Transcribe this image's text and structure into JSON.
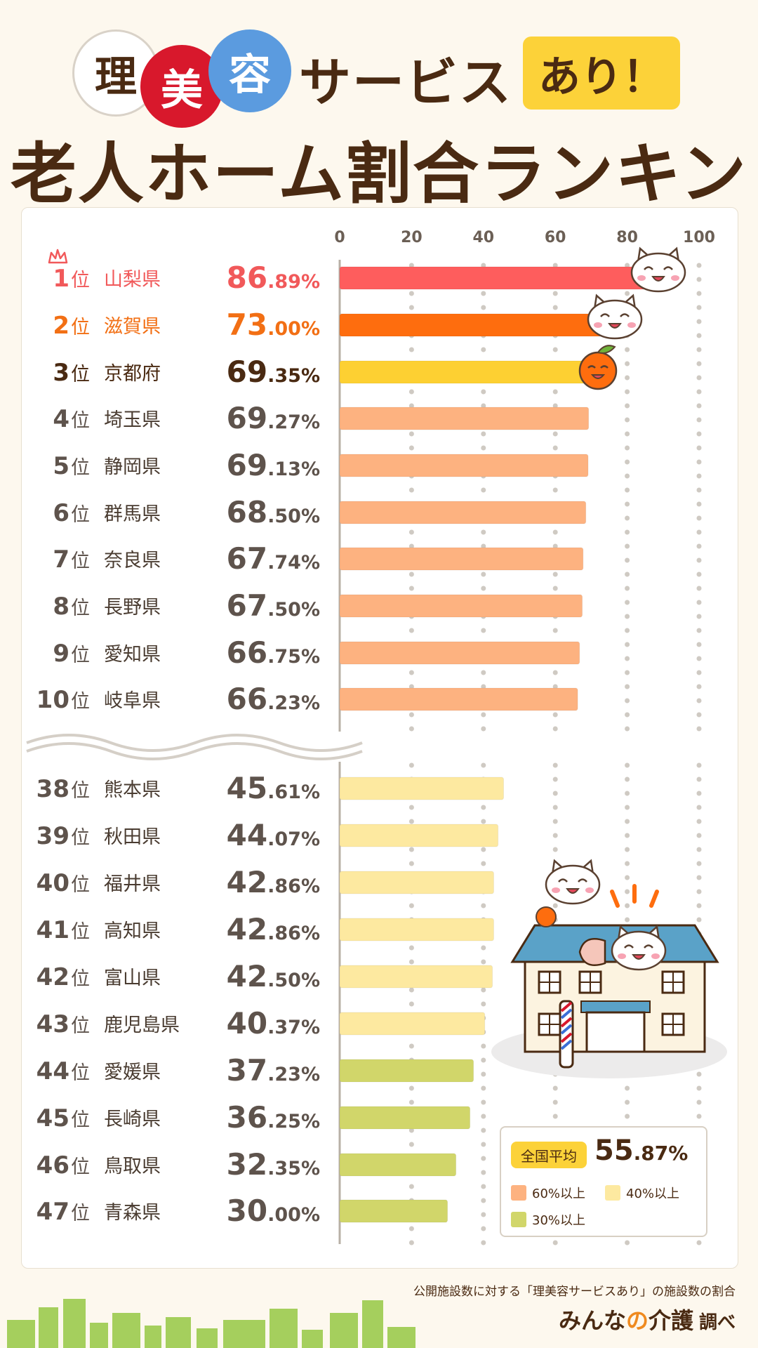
{
  "title": {
    "circle1": "理",
    "circle2": "美",
    "circle3": "容",
    "service": "サービス",
    "ari": "あり！",
    "line2": "老人ホーム割合ランキング"
  },
  "legend": {
    "avg_label": "全国平均",
    "avg_int": "55",
    "avg_dec": ".87%",
    "items": [
      "60%以上",
      "40%以上",
      "30%以上"
    ],
    "colors": [
      "#fdb280",
      "#fde9a0",
      "#d1d66a"
    ]
  },
  "footer": {
    "note": "公開施設数に対する「理美容サービスあり」の施設数の割合",
    "brand_main": "みんな",
    "brand_no": "の",
    "brand_care": "介護",
    "brand_sub": "調べ"
  },
  "chart_data": {
    "type": "bar",
    "orientation": "horizontal",
    "xlim": [
      0,
      100
    ],
    "x_ticks": [
      0,
      20,
      40,
      60,
      80,
      100
    ],
    "rank_suffix": "位",
    "unit": "%",
    "rows": [
      {
        "rank": "1",
        "pref": "山梨県",
        "int": "86",
        "dec": ".89%",
        "value": 86.89,
        "color": "#fe5d5d",
        "text_color": "#f1595a"
      },
      {
        "rank": "2",
        "pref": "滋賀県",
        "int": "73",
        "dec": ".00%",
        "value": 73.0,
        "color": "#fe6d0e",
        "text_color": "#f26f14"
      },
      {
        "rank": "3",
        "pref": "京都府",
        "int": "69",
        "dec": ".35%",
        "value": 69.35,
        "color": "#fdd032",
        "text_color": "#4a2a12"
      },
      {
        "rank": "4",
        "pref": "埼玉県",
        "int": "69",
        "dec": ".27%",
        "value": 69.27,
        "color": "#fdb280",
        "text_color": "#5e534c"
      },
      {
        "rank": "5",
        "pref": "静岡県",
        "int": "69",
        "dec": ".13%",
        "value": 69.13,
        "color": "#fdb280",
        "text_color": "#5e534c"
      },
      {
        "rank": "6",
        "pref": "群馬県",
        "int": "68",
        "dec": ".50%",
        "value": 68.5,
        "color": "#fdb280",
        "text_color": "#5e534c"
      },
      {
        "rank": "7",
        "pref": "奈良県",
        "int": "67",
        "dec": ".74%",
        "value": 67.74,
        "color": "#fdb280",
        "text_color": "#5e534c"
      },
      {
        "rank": "8",
        "pref": "長野県",
        "int": "67",
        "dec": ".50%",
        "value": 67.5,
        "color": "#fdb280",
        "text_color": "#5e534c"
      },
      {
        "rank": "9",
        "pref": "愛知県",
        "int": "66",
        "dec": ".75%",
        "value": 66.75,
        "color": "#fdb280",
        "text_color": "#5e534c"
      },
      {
        "rank": "10",
        "pref": "岐阜県",
        "int": "66",
        "dec": ".23%",
        "value": 66.23,
        "color": "#fdb280",
        "text_color": "#5e534c"
      },
      {
        "rank": "38",
        "pref": "熊本県",
        "int": "45",
        "dec": ".61%",
        "value": 45.61,
        "color": "#fde9a0",
        "text_color": "#5e534c"
      },
      {
        "rank": "39",
        "pref": "秋田県",
        "int": "44",
        "dec": ".07%",
        "value": 44.07,
        "color": "#fde9a0",
        "text_color": "#5e534c"
      },
      {
        "rank": "40",
        "pref": "福井県",
        "int": "42",
        "dec": ".86%",
        "value": 42.86,
        "color": "#fde9a0",
        "text_color": "#5e534c"
      },
      {
        "rank": "41",
        "pref": "高知県",
        "int": "42",
        "dec": ".86%",
        "value": 42.86,
        "color": "#fde9a0",
        "text_color": "#5e534c"
      },
      {
        "rank": "42",
        "pref": "富山県",
        "int": "42",
        "dec": ".50%",
        "value": 42.5,
        "color": "#fde9a0",
        "text_color": "#5e534c"
      },
      {
        "rank": "43",
        "pref": "鹿児島県",
        "int": "40",
        "dec": ".37%",
        "value": 40.37,
        "color": "#fde9a0",
        "text_color": "#5e534c"
      },
      {
        "rank": "44",
        "pref": "愛媛県",
        "int": "37",
        "dec": ".23%",
        "value": 37.23,
        "color": "#d1d66a",
        "text_color": "#5e534c"
      },
      {
        "rank": "45",
        "pref": "長崎県",
        "int": "36",
        "dec": ".25%",
        "value": 36.25,
        "color": "#d1d66a",
        "text_color": "#5e534c"
      },
      {
        "rank": "46",
        "pref": "鳥取県",
        "int": "32",
        "dec": ".35%",
        "value": 32.35,
        "color": "#d1d66a",
        "text_color": "#5e534c"
      },
      {
        "rank": "47",
        "pref": "青森県",
        "int": "30",
        "dec": ".00%",
        "value": 30.0,
        "color": "#d1d66a",
        "text_color": "#5e534c"
      }
    ]
  }
}
